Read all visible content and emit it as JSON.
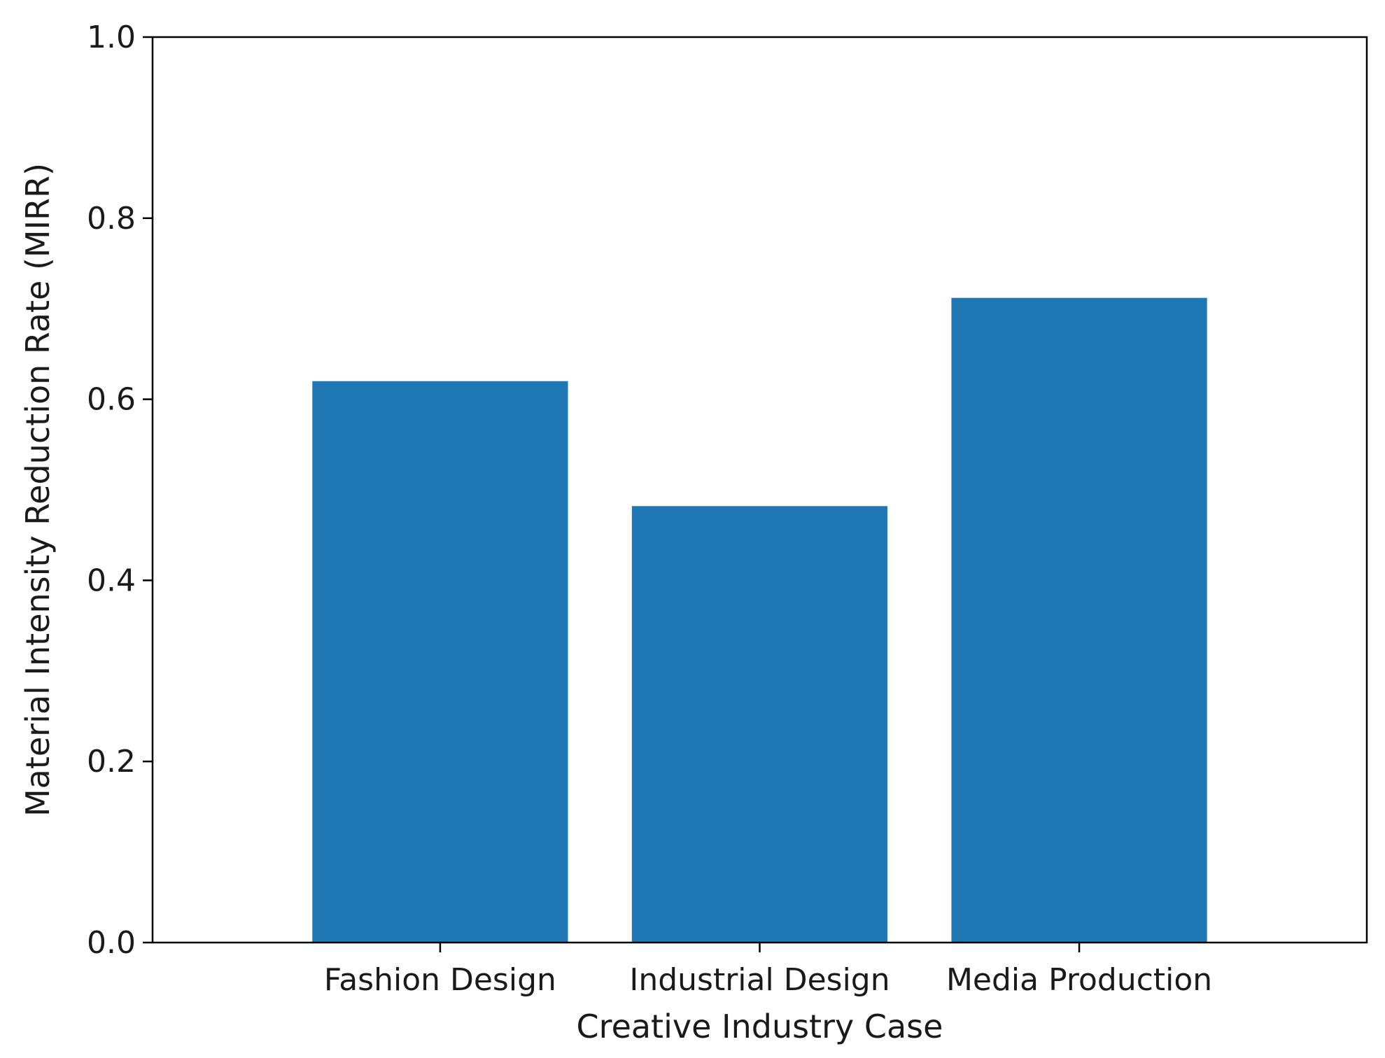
{
  "chart_data": {
    "type": "bar",
    "title": "",
    "xlabel": "Creative Industry Case",
    "ylabel": "Material Intensity Reduction Rate (MIRR)",
    "categories": [
      "Fashion Design",
      "Industrial Design",
      "Media Production"
    ],
    "values": [
      0.62,
      0.482,
      0.712
    ],
    "ylim": [
      0,
      1.0
    ],
    "yticks": [
      "0.0",
      "0.2",
      "0.4",
      "0.6",
      "0.8",
      "1.0"
    ],
    "grid": false,
    "legend": "none",
    "colors": {
      "bar": "#1f77b4",
      "axes": "#000000",
      "background": "#ffffff"
    }
  }
}
